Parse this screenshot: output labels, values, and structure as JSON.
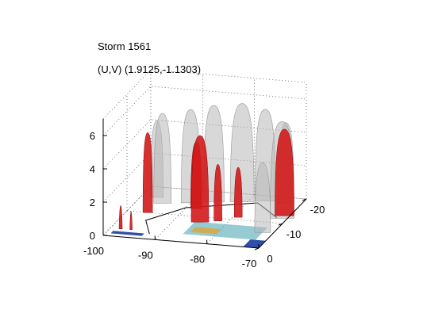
{
  "chart_data": {
    "type": "3d-isosurface",
    "title_lines": [
      "Storm 1561",
      "(U,V) (1.9125,-1.1303)"
    ],
    "x_axis": {
      "ticks": [
        -100,
        -90,
        -80,
        -70
      ],
      "range": [
        -100,
        -70
      ]
    },
    "y_axis": {
      "ticks": [
        0,
        -10,
        -20
      ],
      "range": [
        -20,
        0
      ]
    },
    "z_axis": {
      "ticks": [
        0,
        2,
        4,
        6
      ],
      "range": [
        0,
        7
      ]
    },
    "grid": true,
    "colors": {
      "outer_isosurface": "#b8b8b8",
      "core_isosurface": "#d11a1a",
      "ground_low": "#1a3c9e",
      "ground_mid": "#3fa0b0",
      "ground_high": "#e8a020"
    }
  }
}
